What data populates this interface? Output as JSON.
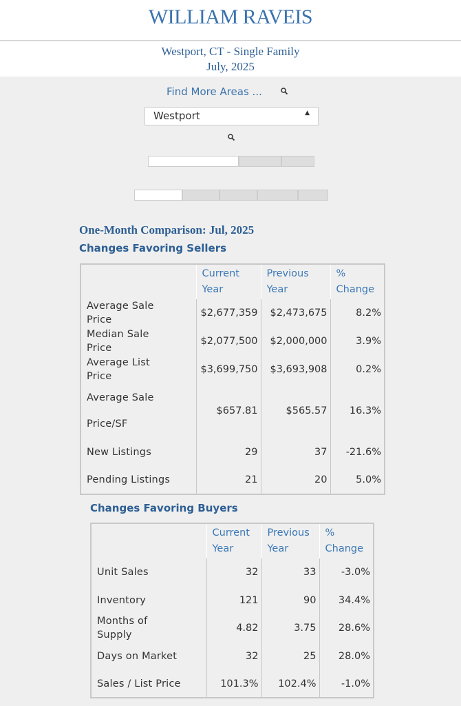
{
  "header": {
    "logo": "WILLIAM RAVEIS",
    "location": "Westport, CT - Single Family",
    "date": "July, 2025"
  },
  "search": {
    "link": "Find More Areas ...",
    "selected": "Westport"
  },
  "comparison_title": "One-Month Comparison:  Jul, 2025",
  "sellers": {
    "title": "Changes Favoring Sellers",
    "columns": [
      "Current Year",
      "Previous Year",
      "% Change"
    ],
    "rows": [
      [
        "Average Sale Price",
        "$2,677,359",
        "$2,473,675",
        "8.2%"
      ],
      [
        "Median Sale Price",
        "$2,077,500",
        "$2,000,000",
        "3.9%"
      ],
      [
        "Average List Price",
        "$3,699,750",
        "$3,693,908",
        "0.2%"
      ],
      [
        "Average Sale Price/SF",
        "$657.81",
        "$565.57",
        "16.3%"
      ],
      [
        "New Listings",
        "29",
        "37",
        "-21.6%"
      ],
      [
        "Pending Listings",
        "21",
        "20",
        "5.0%"
      ]
    ]
  },
  "buyers": {
    "title": "Changes Favoring Buyers",
    "columns": [
      "Current Year",
      "Previous Year",
      "% Change"
    ],
    "rows": [
      [
        "Unit Sales",
        "32",
        "33",
        "-3.0%"
      ],
      [
        "Inventory",
        "121",
        "90",
        "34.4%"
      ],
      [
        "Months of Supply",
        "4.82",
        "3.75",
        "28.6%"
      ],
      [
        "Days on Market",
        "32",
        "25",
        "28.0%"
      ],
      [
        "Sales / List Price",
        "101.3%",
        "102.4%",
        "-1.0%"
      ]
    ]
  }
}
